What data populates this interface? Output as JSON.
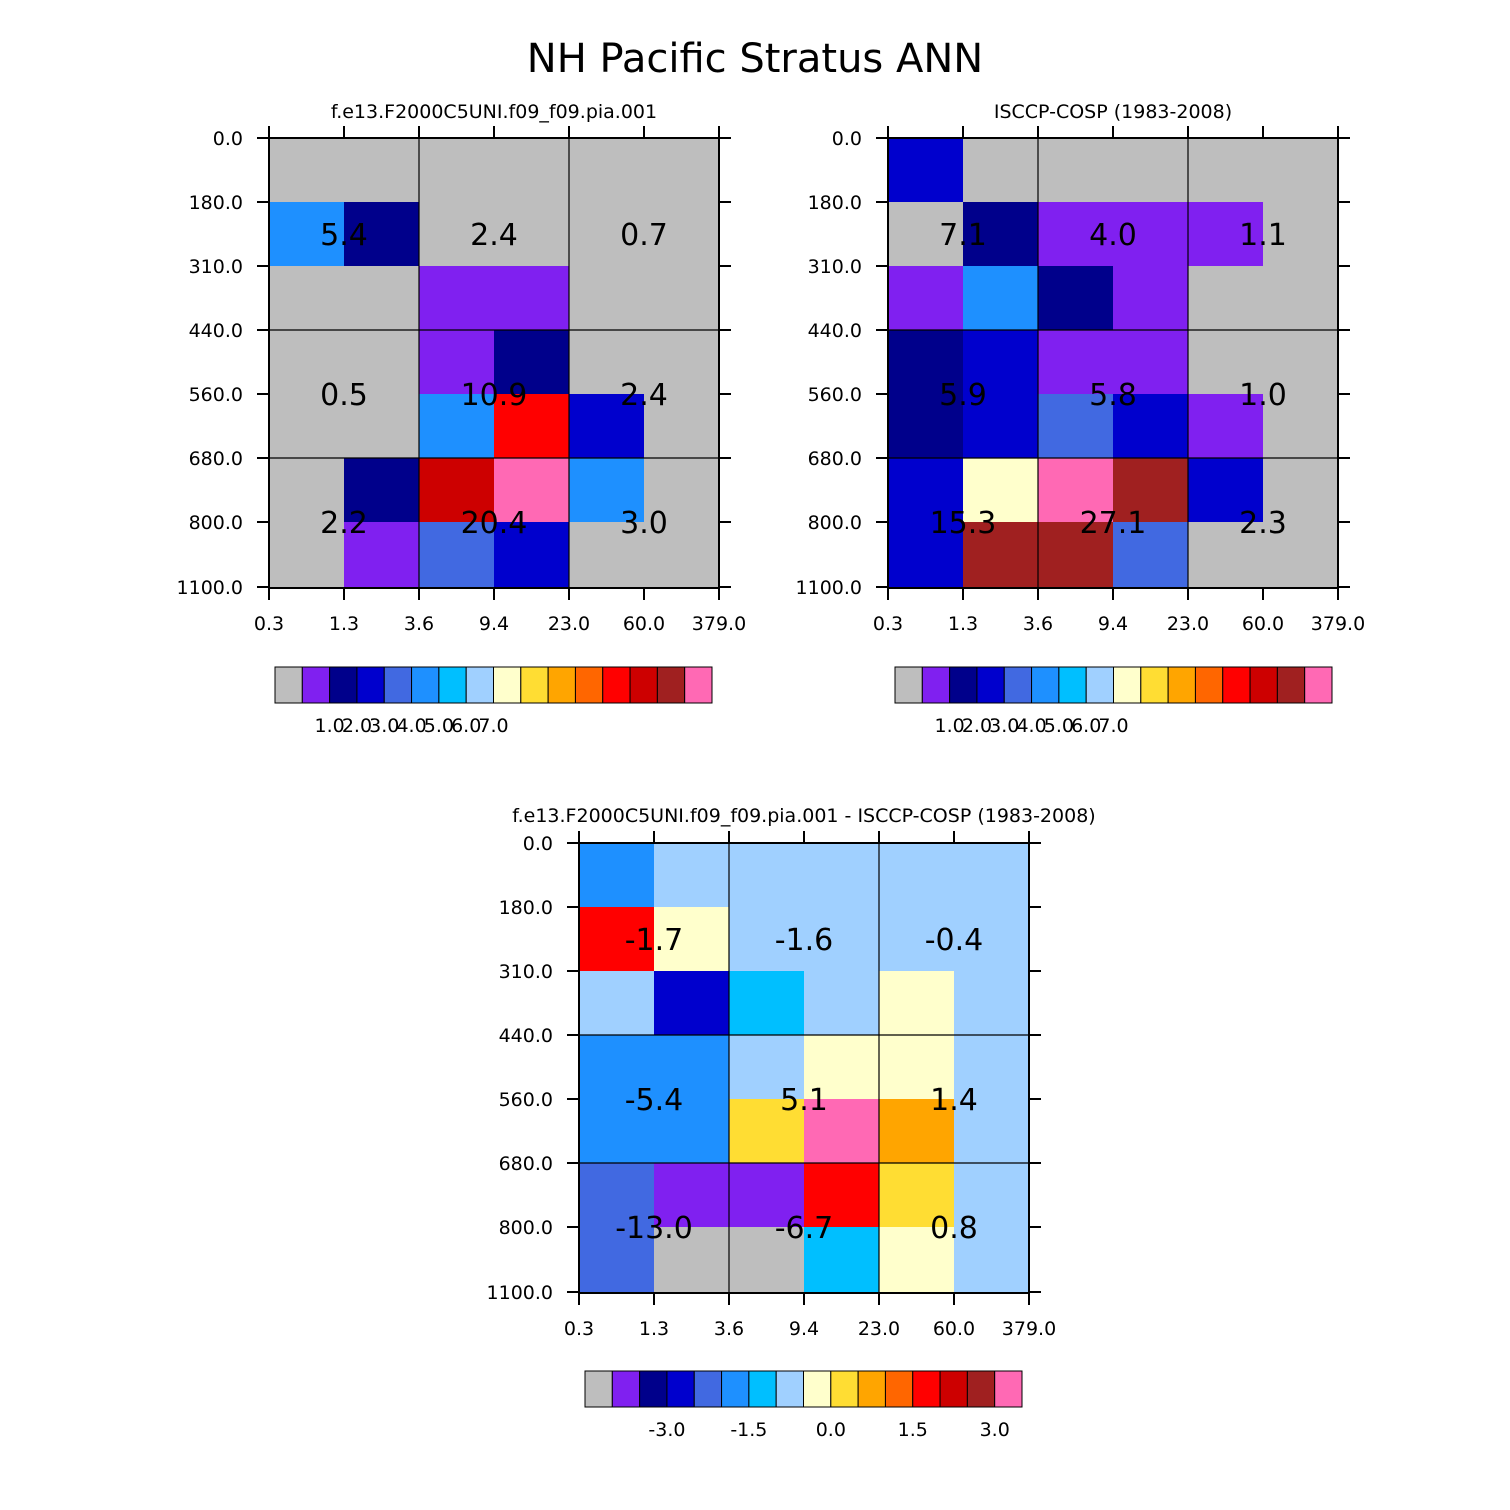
{
  "title": "NH Pacific Stratus ANN",
  "chart_data": [
    {
      "type": "heatmap",
      "title": "f.e13.F2000C5UNI.f09_f09.pia.001",
      "x_ticks": [
        "0.3",
        "1.3",
        "3.6",
        "9.4",
        "23.0",
        "60.0",
        "379.0"
      ],
      "y_ticks": [
        "0.0",
        "180.0",
        "310.0",
        "440.0",
        "560.0",
        "680.0",
        "800.0",
        "1100.0"
      ],
      "cells": [
        [
          0,
          0,
          0,
          0,
          0,
          0
        ],
        [
          5,
          2,
          0,
          0,
          0,
          0
        ],
        [
          0,
          0,
          1,
          1,
          0,
          0
        ],
        [
          0,
          0,
          1,
          2,
          0,
          0
        ],
        [
          0,
          0,
          5,
          12,
          3,
          0
        ],
        [
          0,
          2,
          13,
          15,
          5,
          0
        ],
        [
          0,
          1,
          4,
          3,
          0,
          0
        ]
      ],
      "block_labels": [
        [
          "5.4",
          "2.4",
          "0.7"
        ],
        [
          "0.5",
          "10.9",
          "2.4"
        ],
        [
          "2.2",
          "20.4",
          "3.0"
        ]
      ],
      "colorbar": {
        "labels": [
          "1.0",
          "2.0",
          "3.0",
          "4.0",
          "5.0",
          "6.0",
          "7.0"
        ]
      }
    },
    {
      "type": "heatmap",
      "title": "ISCCP-COSP (1983-2008)",
      "x_ticks": [
        "0.3",
        "1.3",
        "3.6",
        "9.4",
        "23.0",
        "60.0",
        "379.0"
      ],
      "y_ticks": [
        "0.0",
        "180.0",
        "310.0",
        "440.0",
        "560.0",
        "680.0",
        "800.0",
        "1100.0"
      ],
      "cells": [
        [
          3,
          0,
          0,
          0,
          0,
          0
        ],
        [
          0,
          2,
          1,
          1,
          1,
          0
        ],
        [
          1,
          5,
          2,
          1,
          0,
          0
        ],
        [
          2,
          3,
          1,
          1,
          0,
          0
        ],
        [
          2,
          3,
          4,
          3,
          1,
          0
        ],
        [
          3,
          8,
          15,
          14,
          3,
          0
        ],
        [
          3,
          14,
          14,
          4,
          0,
          0
        ]
      ],
      "block_labels": [
        [
          "7.1",
          "4.0",
          "1.1"
        ],
        [
          "5.9",
          "5.8",
          "1.0"
        ],
        [
          "15.3",
          "27.1",
          "2.3"
        ]
      ],
      "colorbar": {
        "labels": [
          "1.0",
          "2.0",
          "3.0",
          "4.0",
          "5.0",
          "6.0",
          "7.0"
        ]
      }
    },
    {
      "type": "heatmap",
      "title": "f.e13.F2000C5UNI.f09_f09.pia.001 - ISCCP-COSP (1983-2008)",
      "x_ticks": [
        "0.3",
        "1.3",
        "3.6",
        "9.4",
        "23.0",
        "60.0",
        "379.0"
      ],
      "y_ticks": [
        "0.0",
        "180.0",
        "310.0",
        "440.0",
        "560.0",
        "680.0",
        "800.0",
        "1100.0"
      ],
      "cells": [
        [
          5,
          7,
          7,
          7,
          7,
          7
        ],
        [
          12,
          8,
          7,
          7,
          7,
          7
        ],
        [
          7,
          3,
          6,
          7,
          8,
          7
        ],
        [
          5,
          5,
          7,
          8,
          8,
          7
        ],
        [
          5,
          5,
          9,
          15,
          10,
          7
        ],
        [
          4,
          1,
          1,
          12,
          9,
          7
        ],
        [
          4,
          0,
          0,
          6,
          8,
          7
        ]
      ],
      "block_labels": [
        [
          "-1.7",
          "-1.6",
          "-0.4"
        ],
        [
          "-5.4",
          "5.1",
          "1.4"
        ],
        [
          "-13.0",
          "-6.7",
          "0.8"
        ]
      ],
      "colorbar": {
        "labels": [
          "-3.0",
          "-1.5",
          "0.0",
          "1.5",
          "3.0"
        ]
      }
    }
  ],
  "palette": [
    "#bebebe",
    "#8020f0",
    "#00008b",
    "#0000cd",
    "#4169e1",
    "#1e90ff",
    "#00bfff",
    "#a0d0ff",
    "#ffffcc",
    "#ffdd33",
    "#ffa500",
    "#ff6600",
    "#ff0000",
    "#cd0000",
    "#a02020",
    "#ff69b4"
  ]
}
